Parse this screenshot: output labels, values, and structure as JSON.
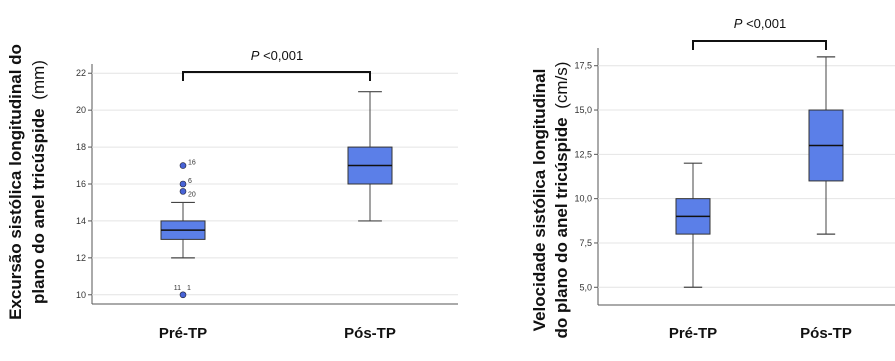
{
  "chart_data": [
    {
      "type": "box",
      "ylabel": {
        "line1": "Excursão sistólica longitudinal do",
        "line2": "plano do anel tricúspide",
        "unit": "(mm)"
      },
      "yticks": [
        "10",
        "12",
        "14",
        "16",
        "18",
        "20",
        "22"
      ],
      "ylim": [
        9.5,
        22.5
      ],
      "grid": true,
      "categories": [
        "Pré-TP",
        "Pós-TP"
      ],
      "boxes": [
        {
          "whisker_low": 12,
          "q1": 13,
          "median": 13.5,
          "q3": 14,
          "whisker_high": 15,
          "outliers": [
            {
              "value": 17,
              "label": "16"
            },
            {
              "value": 16,
              "label": "6"
            },
            {
              "value": 15.6,
              "label": "20"
            },
            {
              "value": 10,
              "label": "11",
              "label2": "1"
            }
          ]
        },
        {
          "whisker_low": 14,
          "q1": 16,
          "median": 17,
          "q3": 18,
          "whisker_high": 21,
          "outliers": []
        }
      ],
      "significance": {
        "p_symbol": "P",
        "p_text": " <0,001"
      },
      "box_color": "#5b7fe8"
    },
    {
      "type": "box",
      "ylabel": {
        "line1": "Velocidade  sistólica longitudinal",
        "line2": "do plano do anel tricúspide",
        "unit": "(cm/s)"
      },
      "yticks": [
        "5,0",
        "7,5",
        "10,0",
        "12,5",
        "15,0",
        "17,5"
      ],
      "ylim": [
        4.0,
        18.5
      ],
      "grid": true,
      "categories": [
        "Pré-TP",
        "Pós-TP"
      ],
      "boxes": [
        {
          "whisker_low": 5,
          "q1": 8,
          "median": 9,
          "q3": 10,
          "whisker_high": 12,
          "outliers": []
        },
        {
          "whisker_low": 8,
          "q1": 11,
          "median": 13,
          "q3": 15,
          "whisker_high": 18,
          "outliers": []
        }
      ],
      "significance": {
        "p_symbol": "P",
        "p_text": " <0,001"
      },
      "box_color": "#5b7fe8"
    }
  ]
}
